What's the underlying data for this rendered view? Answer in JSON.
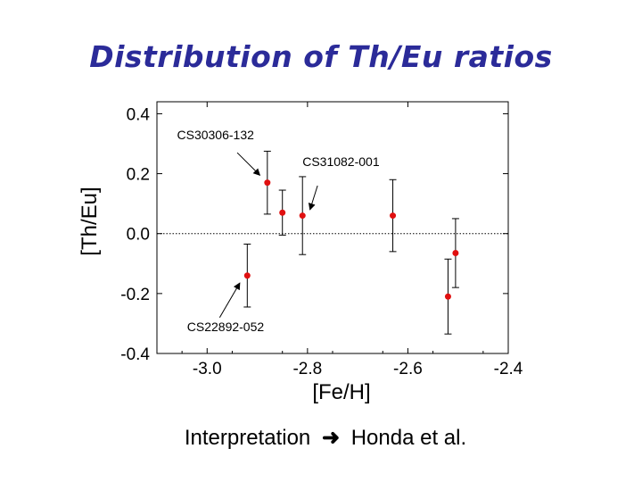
{
  "slide": {
    "title": "Distribution of Th/Eu ratios",
    "footer_text": "Interpretation",
    "footer_arrow": "➜",
    "footer_ref": "Honda et al."
  },
  "chart_data": {
    "type": "scatter",
    "title": "",
    "xlabel": "[Fe/H]",
    "ylabel": "[Th/Eu]",
    "xlim": [
      -3.1,
      -2.4
    ],
    "ylim": [
      -0.4,
      0.44
    ],
    "x_ticks": [
      -3.0,
      -2.8,
      -2.6,
      -2.4
    ],
    "x_tick_labels": [
      "-3.0",
      "-2.8",
      "-2.6",
      "-2.4"
    ],
    "y_ticks": [
      0.4,
      0.2,
      0.0,
      -0.2,
      -0.4
    ],
    "y_tick_labels": [
      "0.4",
      "0.2",
      "0.0",
      "-0.2",
      "-0.4"
    ],
    "reference_line": {
      "y": 0.0,
      "style": "dotted"
    },
    "marker_color": "#e01010",
    "points": [
      {
        "x": -2.92,
        "y": -0.14,
        "yerr": 0.105
      },
      {
        "x": -2.88,
        "y": 0.17,
        "yerr": 0.105
      },
      {
        "x": -2.85,
        "y": 0.07,
        "yerr": 0.075
      },
      {
        "x": -2.81,
        "y": 0.06,
        "yerr": 0.13
      },
      {
        "x": -2.63,
        "y": 0.06,
        "yerr": 0.12
      },
      {
        "x": -2.52,
        "y": -0.21,
        "yerr": 0.125
      },
      {
        "x": -2.505,
        "y": -0.065,
        "yerr": 0.115
      }
    ],
    "annotations": [
      {
        "text": "CS30306-132",
        "text_x": -3.06,
        "text_y": 0.315,
        "arrow_from": [
          -2.94,
          0.27
        ],
        "arrow_to": [
          -2.895,
          0.195
        ]
      },
      {
        "text": "CS31082-001",
        "text_x": -2.81,
        "text_y": 0.225,
        "arrow_from": [
          -2.78,
          0.16
        ],
        "arrow_to": [
          -2.795,
          0.08
        ]
      },
      {
        "text": "CS22892-052",
        "text_x": -3.04,
        "text_y": -0.325,
        "arrow_from": [
          -2.975,
          -0.28
        ],
        "arrow_to": [
          -2.935,
          -0.165
        ]
      }
    ]
  }
}
